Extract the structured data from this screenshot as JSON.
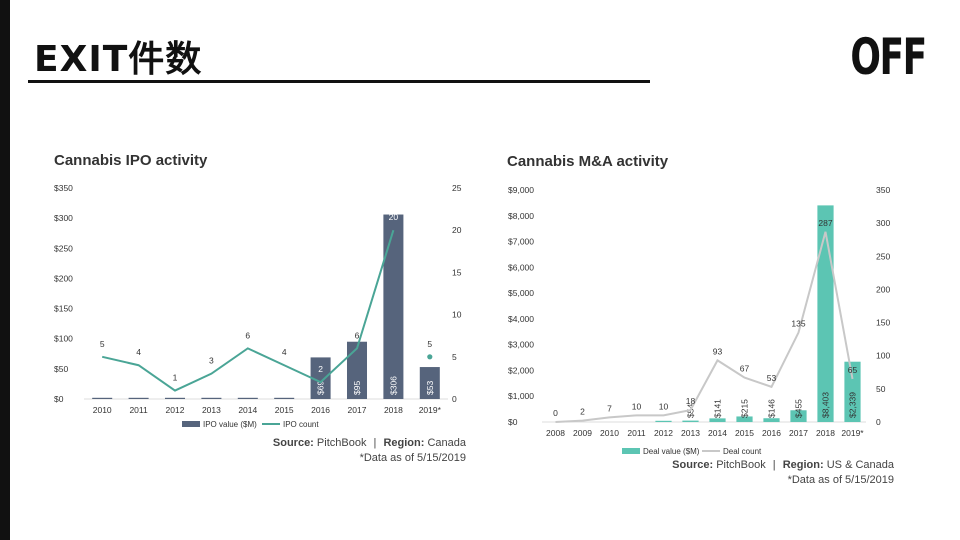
{
  "slide": {
    "title": "EXIT件数",
    "logo": "OFF"
  },
  "colors": {
    "ipo_bar": "#56647c",
    "ipo_line": "#4aa596",
    "ma_bar": "#5cc5b3",
    "ma_line": "#c8c8c8",
    "text": "#333333"
  },
  "chart_data": [
    {
      "type": "bar",
      "title": "Cannabis IPO activity",
      "categories": [
        "2010",
        "2011",
        "2012",
        "2013",
        "2014",
        "2015",
        "2016",
        "2017",
        "2018",
        "2019*"
      ],
      "series": [
        {
          "name": "IPO value ($M)",
          "type": "bar",
          "axis": "left",
          "values": [
            0.5,
            0.5,
            0.5,
            2,
            0.3,
            0.5,
            69,
            95,
            306,
            53
          ],
          "labels": [
            "",
            "",
            "",
            "",
            "",
            "",
            "$69",
            "$95",
            "$306",
            "$53"
          ]
        },
        {
          "name": "IPO count",
          "type": "line",
          "axis": "right",
          "values": [
            5,
            4,
            1,
            3,
            6,
            4,
            2,
            6,
            20,
            5
          ],
          "labels": [
            "5",
            "4",
            "1",
            "3",
            "6",
            "4",
            "2",
            "6",
            "20",
            "5"
          ]
        }
      ],
      "y_left": {
        "min": 0,
        "max": 350,
        "ticks": [
          "$0",
          "$50",
          "$100",
          "$150",
          "$200",
          "$250",
          "$300",
          "$350"
        ]
      },
      "y_right": {
        "min": 0,
        "max": 25,
        "ticks": [
          "0",
          "5",
          "10",
          "15",
          "20",
          "25"
        ]
      },
      "grid": false,
      "legend": "bottom",
      "source_label": "Source:",
      "source_value": "PitchBook",
      "region_label": "Region:",
      "region_value": "Canada",
      "separator": "|",
      "note": "*Data as of 5/15/2019"
    },
    {
      "type": "bar",
      "title": "Cannabis M&A activity",
      "categories": [
        "2008",
        "2009",
        "2010",
        "2011",
        "2012",
        "2013",
        "2014",
        "2015",
        "2016",
        "2017",
        "2018",
        "2019*"
      ],
      "series": [
        {
          "name": "Deal value ($M)",
          "type": "bar",
          "axis": "left",
          "values": [
            0,
            0,
            0,
            0,
            5,
            54,
            141,
            215,
            146,
            455,
            8403,
            2339
          ],
          "labels": [
            "",
            "",
            "",
            "",
            "",
            "$54",
            "$141",
            "$215",
            "$146",
            "$455",
            "$8,403",
            "$2,339"
          ]
        },
        {
          "name": "Deal count",
          "type": "line",
          "axis": "right",
          "values": [
            0,
            2,
            7,
            10,
            10,
            18,
            93,
            67,
            53,
            135,
            287,
            65
          ],
          "labels": [
            "0",
            "2",
            "7",
            "10",
            "10",
            "18",
            "93",
            "67",
            "53",
            "135",
            "287",
            "65"
          ]
        }
      ],
      "y_left": {
        "min": 0,
        "max": 9000,
        "ticks": [
          "$0",
          "$1,000",
          "$2,000",
          "$3,000",
          "$4,000",
          "$5,000",
          "$6,000",
          "$7,000",
          "$8,000",
          "$9,000"
        ]
      },
      "y_right": {
        "min": 0,
        "max": 350,
        "ticks": [
          "0",
          "50",
          "100",
          "150",
          "200",
          "250",
          "300",
          "350"
        ]
      },
      "grid": false,
      "legend": "bottom",
      "source_label": "Source:",
      "source_value": "PitchBook",
      "region_label": "Region:",
      "region_value": "US & Canada",
      "separator": "|",
      "note": "*Data as of 5/15/2019"
    }
  ]
}
